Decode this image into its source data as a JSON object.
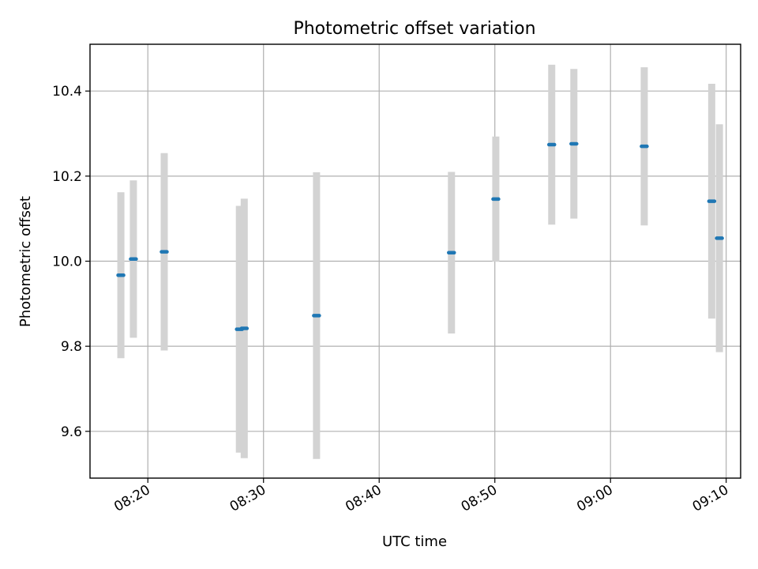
{
  "chart_data": {
    "type": "scatter",
    "title": "Photometric offset variation",
    "xlabel": "UTC time",
    "ylabel": "Photometric offset",
    "x_ticks": [
      "08:20",
      "08:30",
      "08:40",
      "08:50",
      "09:00",
      "09:10"
    ],
    "y_ticks": [
      "9.6",
      "9.8",
      "10.0",
      "10.2",
      "10.4"
    ],
    "xlim": [
      "08:15:00",
      "09:11:15"
    ],
    "ylim": [
      9.49,
      10.51
    ],
    "grid": true,
    "colors": {
      "point": "#1f77b4",
      "error_bar": "#d3d3d3"
    },
    "points": [
      {
        "t": "08:17:40",
        "y": 9.967,
        "err": 0.195
      },
      {
        "t": "08:18:45",
        "y": 10.005,
        "err": 0.185
      },
      {
        "t": "08:21:25",
        "y": 10.022,
        "err": 0.232
      },
      {
        "t": "08:27:55",
        "y": 9.84,
        "err": 0.29
      },
      {
        "t": "08:28:20",
        "y": 9.842,
        "err": 0.305
      },
      {
        "t": "08:34:35",
        "y": 9.872,
        "err": 0.337
      },
      {
        "t": "08:46:15",
        "y": 10.02,
        "err": 0.19
      },
      {
        "t": "08:50:05",
        "y": 10.146,
        "err": 0.147
      },
      {
        "t": "08:54:55",
        "y": 10.274,
        "err": 0.188
      },
      {
        "t": "08:56:50",
        "y": 10.276,
        "err": 0.176
      },
      {
        "t": "09:02:55",
        "y": 10.27,
        "err": 0.186
      },
      {
        "t": "09:08:45",
        "y": 10.141,
        "err": 0.276
      },
      {
        "t": "09:09:25",
        "y": 10.054,
        "err": 0.268
      }
    ]
  }
}
